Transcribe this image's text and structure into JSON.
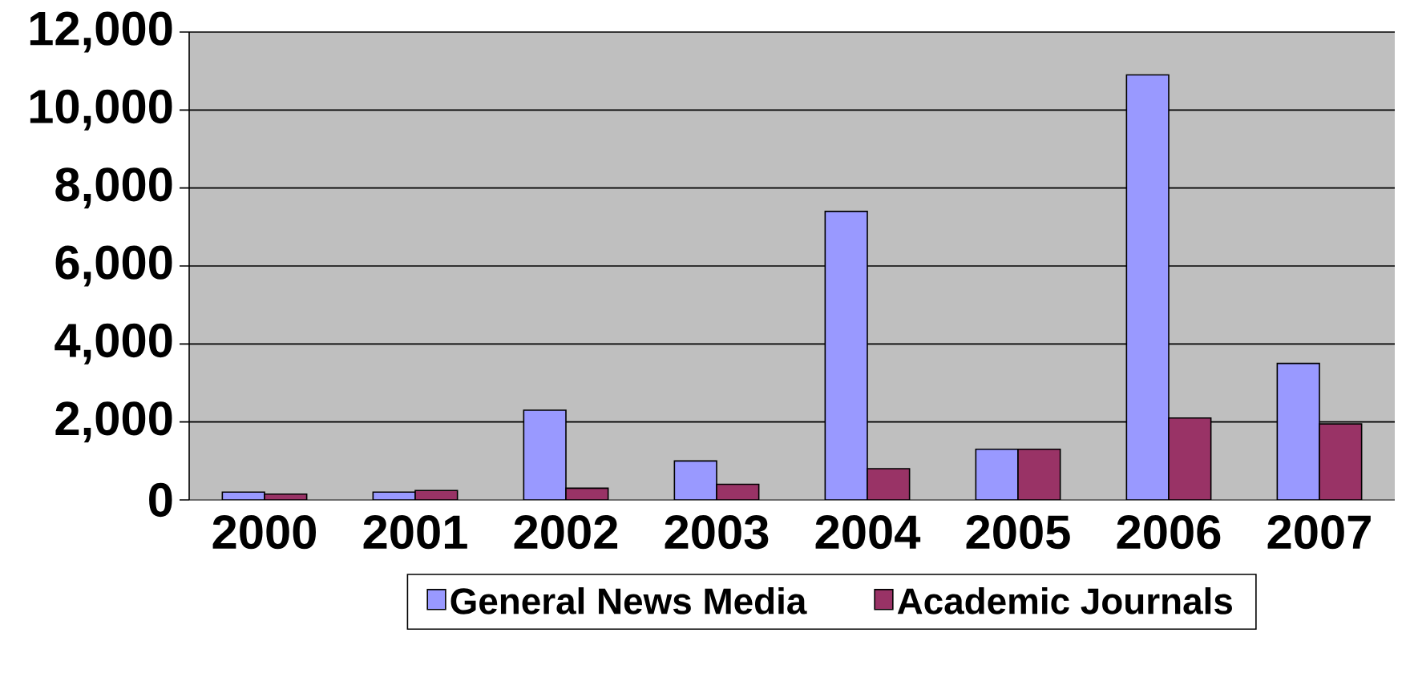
{
  "chart_data": {
    "type": "bar",
    "categories": [
      "2000",
      "2001",
      "2002",
      "2003",
      "2004",
      "2005",
      "2006",
      "2007"
    ],
    "series": [
      {
        "name": "General News Media",
        "color": "#9999ff",
        "values": [
          200,
          200,
          2300,
          1000,
          7400,
          1300,
          10900,
          3500
        ]
      },
      {
        "name": "Academic Journals",
        "color": "#993366",
        "values": [
          150,
          240,
          300,
          400,
          800,
          1300,
          2100,
          1950
        ]
      }
    ],
    "ylim": [
      0,
      12000
    ],
    "yticks": [
      0,
      {
        "value": 2000,
        "label": "2,000"
      },
      {
        "value": 4000,
        "label": "4,000"
      },
      {
        "value": 6000,
        "label": "6,000"
      },
      {
        "value": 8000,
        "label": "8,000"
      },
      {
        "value": 10000,
        "label": "10,000"
      },
      {
        "value": 12000,
        "label": "12,000"
      }
    ],
    "grid": "y",
    "legend": "bottom"
  }
}
